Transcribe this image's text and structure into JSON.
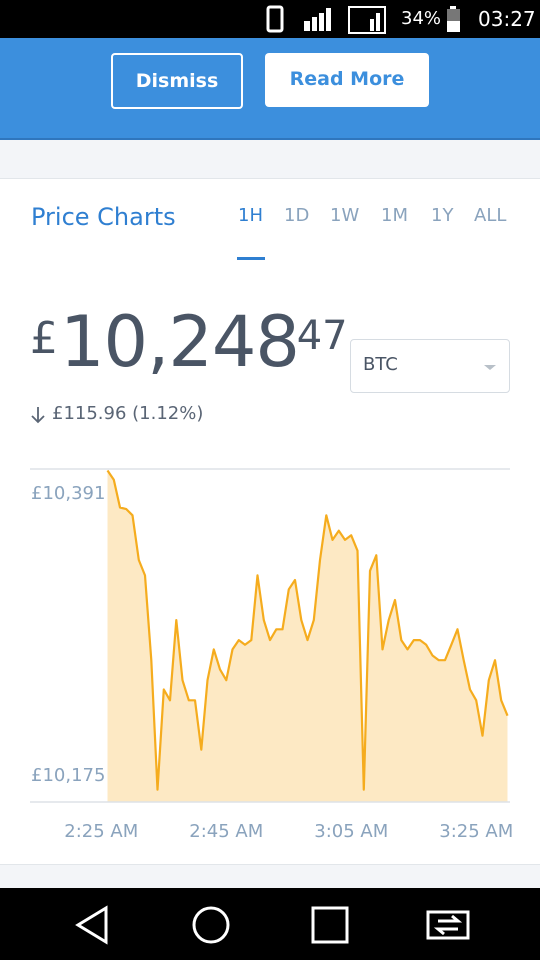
{
  "status_bar": {
    "battery": "34%",
    "time": "03:27"
  },
  "banner": {
    "dismiss": "Dismiss",
    "read_more": "Read More"
  },
  "price_charts": {
    "title": "Price Charts",
    "tabs": [
      "1H",
      "1D",
      "1W",
      "1M",
      "1Y",
      "ALL"
    ]
  },
  "price": {
    "symbol": "£",
    "whole": "10,248",
    "decimals": ".47",
    "currency": "BTC",
    "change": "£115.96 (1.12%)"
  },
  "chart_data": {
    "type": "area",
    "color": "#f5ac1e",
    "fill": "#fde9c4",
    "x": [
      146,
      147,
      148,
      149,
      150,
      151,
      152,
      153,
      154,
      155,
      156,
      157,
      158,
      159,
      160,
      161,
      162,
      163,
      164,
      165,
      166,
      167,
      168,
      169,
      170,
      171,
      172,
      173,
      174,
      175,
      176,
      177,
      178,
      179,
      180,
      181,
      182,
      183,
      184,
      185,
      186,
      187,
      188,
      189,
      190,
      191,
      192,
      193,
      194,
      195,
      196,
      197,
      198,
      199,
      200,
      201,
      202,
      203,
      204,
      205,
      206,
      207,
      208,
      209,
      210
    ],
    "values": [
      10390,
      10384,
      10366,
      10365,
      10361,
      10332,
      10322,
      10267,
      10183,
      10248,
      10241,
      10293,
      10254,
      10241,
      10241,
      10209,
      10254,
      10274,
      10261,
      10254,
      10274,
      10280,
      10277,
      10280,
      10322,
      10293,
      10280,
      10287,
      10287,
      10313,
      10319,
      10293,
      10280,
      10293,
      10332,
      10361,
      10345,
      10351,
      10345,
      10348,
      10338,
      10183,
      10325,
      10335,
      10274,
      10293,
      10306,
      10280,
      10274,
      10280,
      10280,
      10277,
      10270,
      10267,
      10267,
      10277,
      10287,
      10267,
      10248,
      10241,
      10218,
      10254,
      10267,
      10241,
      10231
    ],
    "xlim": [
      133.6,
      210.4
    ],
    "xticks": [
      {
        "value": 145,
        "label": "2:25 AM"
      },
      {
        "value": 165,
        "label": "2:45 AM"
      },
      {
        "value": 185,
        "label": "3:05 AM"
      },
      {
        "value": 205,
        "label": "3:25 AM"
      }
    ],
    "ylim": [
      10175,
      10391
    ],
    "yticks": [
      {
        "value": 10175,
        "label": "£10,175"
      },
      {
        "value": 10391,
        "label": "£10,391"
      }
    ],
    "grid": true
  }
}
